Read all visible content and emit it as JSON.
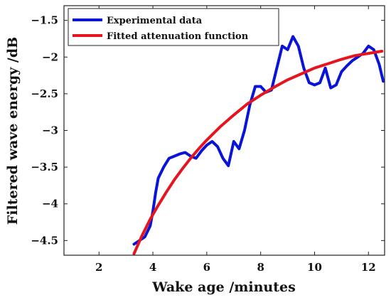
{
  "chart_data": {
    "type": "line",
    "xlabel": "Wake age /minutes",
    "ylabel": "Filtered wave energy /dB",
    "xlim": [
      0.7,
      12.6
    ],
    "ylim": [
      -4.7,
      -1.3
    ],
    "xticks": [
      2,
      4,
      6,
      8,
      10,
      12
    ],
    "yticks": [
      -4.5,
      -4,
      -3.5,
      -3,
      -2.5,
      -2,
      -1.5
    ],
    "xtick_labels": [
      "2",
      "4",
      "6",
      "8",
      "10",
      "12"
    ],
    "ytick_labels": [
      "−4.5",
      "−4",
      "−3.5",
      "−3",
      "−2.5",
      "−2",
      "−1.5"
    ],
    "grid": false,
    "legend_position": "top-left",
    "series": [
      {
        "name": "Experimental data",
        "color": "#0a14d6",
        "x": [
          3.3,
          3.5,
          3.7,
          3.9,
          4.0,
          4.1,
          4.2,
          4.4,
          4.6,
          4.8,
          5.0,
          5.2,
          5.4,
          5.6,
          5.8,
          6.0,
          6.2,
          6.4,
          6.6,
          6.8,
          7.0,
          7.2,
          7.4,
          7.6,
          7.8,
          8.0,
          8.2,
          8.4,
          8.6,
          8.8,
          9.0,
          9.2,
          9.4,
          9.6,
          9.8,
          10.0,
          10.2,
          10.4,
          10.6,
          10.8,
          11.0,
          11.2,
          11.4,
          11.6,
          11.8,
          12.0,
          12.2,
          12.4,
          12.55
        ],
        "y": [
          -4.55,
          -4.5,
          -4.45,
          -4.3,
          -4.1,
          -3.85,
          -3.65,
          -3.5,
          -3.38,
          -3.35,
          -3.32,
          -3.3,
          -3.35,
          -3.38,
          -3.28,
          -3.2,
          -3.15,
          -3.22,
          -3.38,
          -3.48,
          -3.15,
          -3.25,
          -3.0,
          -2.65,
          -2.4,
          -2.4,
          -2.48,
          -2.45,
          -2.15,
          -1.85,
          -1.9,
          -1.72,
          -1.85,
          -2.15,
          -2.35,
          -2.38,
          -2.35,
          -2.15,
          -2.42,
          -2.38,
          -2.2,
          -2.12,
          -2.05,
          -2.0,
          -1.95,
          -1.85,
          -1.9,
          -2.1,
          -2.33
        ]
      },
      {
        "name": "Fitted attenuation function",
        "color": "#e5141e",
        "x": [
          3.3,
          3.6,
          3.9,
          4.2,
          4.5,
          4.8,
          5.1,
          5.4,
          5.7,
          6.0,
          6.5,
          7.0,
          7.5,
          8.0,
          8.5,
          9.0,
          9.5,
          10.0,
          10.5,
          11.0,
          11.5,
          12.0,
          12.5
        ],
        "y": [
          -4.68,
          -4.43,
          -4.21,
          -4.02,
          -3.84,
          -3.67,
          -3.52,
          -3.38,
          -3.25,
          -3.13,
          -2.95,
          -2.79,
          -2.64,
          -2.52,
          -2.41,
          -2.31,
          -2.23,
          -2.15,
          -2.09,
          -2.03,
          -1.98,
          -1.95,
          -1.92
        ]
      }
    ]
  }
}
